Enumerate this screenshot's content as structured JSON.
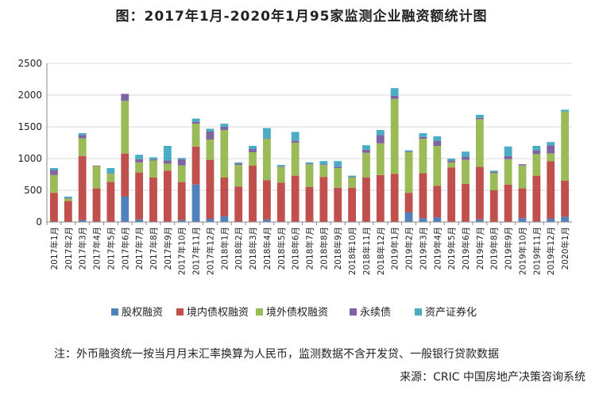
{
  "chart_data": {
    "type": "bar",
    "stacked": true,
    "title": "图：2017年1月-2020年1月95家监测企业融资额统计图",
    "ylim": [
      0,
      2500
    ],
    "yticks": [
      0,
      500,
      1000,
      1500,
      2000,
      2500
    ],
    "legend_position": "bottom",
    "categories": [
      "2017年1月",
      "2017年2月",
      "2017年3月",
      "2017年4月",
      "2017年5月",
      "2017年6月",
      "2017年7月",
      "2017年8月",
      "2017年9月",
      "2017年10月",
      "2017年11月",
      "2017年12月",
      "2018年1月",
      "2018年2月",
      "2018年3月",
      "2018年4月",
      "2018年5月",
      "2018年6月",
      "2018年7月",
      "2018年8月",
      "2018年9月",
      "2018年10月",
      "2018年11月",
      "2018年12月",
      "2019年1月",
      "2019年2月",
      "2019年3月",
      "2019年4月",
      "2019年5月",
      "2019年6月",
      "2019年7月",
      "2019年8月",
      "2019年9月",
      "2019年10月",
      "2019年11月",
      "2019年12月",
      "2020年1月"
    ],
    "series": [
      {
        "name": "股权融资",
        "color": "#4f81bd",
        "values": [
          0,
          0,
          30,
          0,
          0,
          400,
          40,
          0,
          0,
          30,
          590,
          50,
          90,
          0,
          0,
          40,
          0,
          0,
          0,
          0,
          0,
          0,
          0,
          0,
          0,
          150,
          60,
          70,
          0,
          0,
          40,
          0,
          0,
          60,
          0,
          50,
          80
        ]
      },
      {
        "name": "境内债权融资",
        "color": "#c0504d",
        "values": [
          460,
          330,
          1010,
          530,
          630,
          680,
          740,
          700,
          810,
          600,
          600,
          930,
          610,
          560,
          890,
          620,
          620,
          730,
          550,
          710,
          540,
          540,
          700,
          740,
          760,
          310,
          710,
          500,
          860,
          600,
          830,
          500,
          590,
          470,
          730,
          910,
          570
        ]
      },
      {
        "name": "境外债权融资",
        "color": "#9bbb59",
        "values": [
          280,
          40,
          280,
          350,
          130,
          830,
          160,
          270,
          110,
          260,
          360,
          320,
          750,
          340,
          210,
          650,
          250,
          520,
          360,
          190,
          310,
          160,
          390,
          500,
          1180,
          640,
          540,
          630,
          80,
          380,
          750,
          270,
          400,
          360,
          340,
          120,
          1090
        ]
      },
      {
        "name": "永续债",
        "color": "#8064a2",
        "values": [
          80,
          10,
          50,
          10,
          10,
          110,
          50,
          20,
          50,
          100,
          30,
          130,
          50,
          20,
          50,
          10,
          10,
          30,
          10,
          10,
          20,
          10,
          50,
          130,
          50,
          10,
          30,
          80,
          30,
          50,
          20,
          20,
          50,
          20,
          60,
          130,
          0
        ]
      },
      {
        "name": "资产证券化",
        "color": "#4bacc6",
        "values": [
          30,
          20,
          30,
          0,
          80,
          0,
          70,
          30,
          230,
          20,
          50,
          40,
          50,
          20,
          50,
          160,
          20,
          140,
          20,
          50,
          90,
          20,
          70,
          80,
          120,
          20,
          60,
          70,
          30,
          80,
          50,
          20,
          150,
          0,
          70,
          50,
          30
        ]
      }
    ]
  },
  "note": "注：外币融资统一按当月月末汇率换算为人民币，监测数据不含开发贷、一般银行贷款数据",
  "source": "来源：CRIC 中国房地产决策咨询系统"
}
